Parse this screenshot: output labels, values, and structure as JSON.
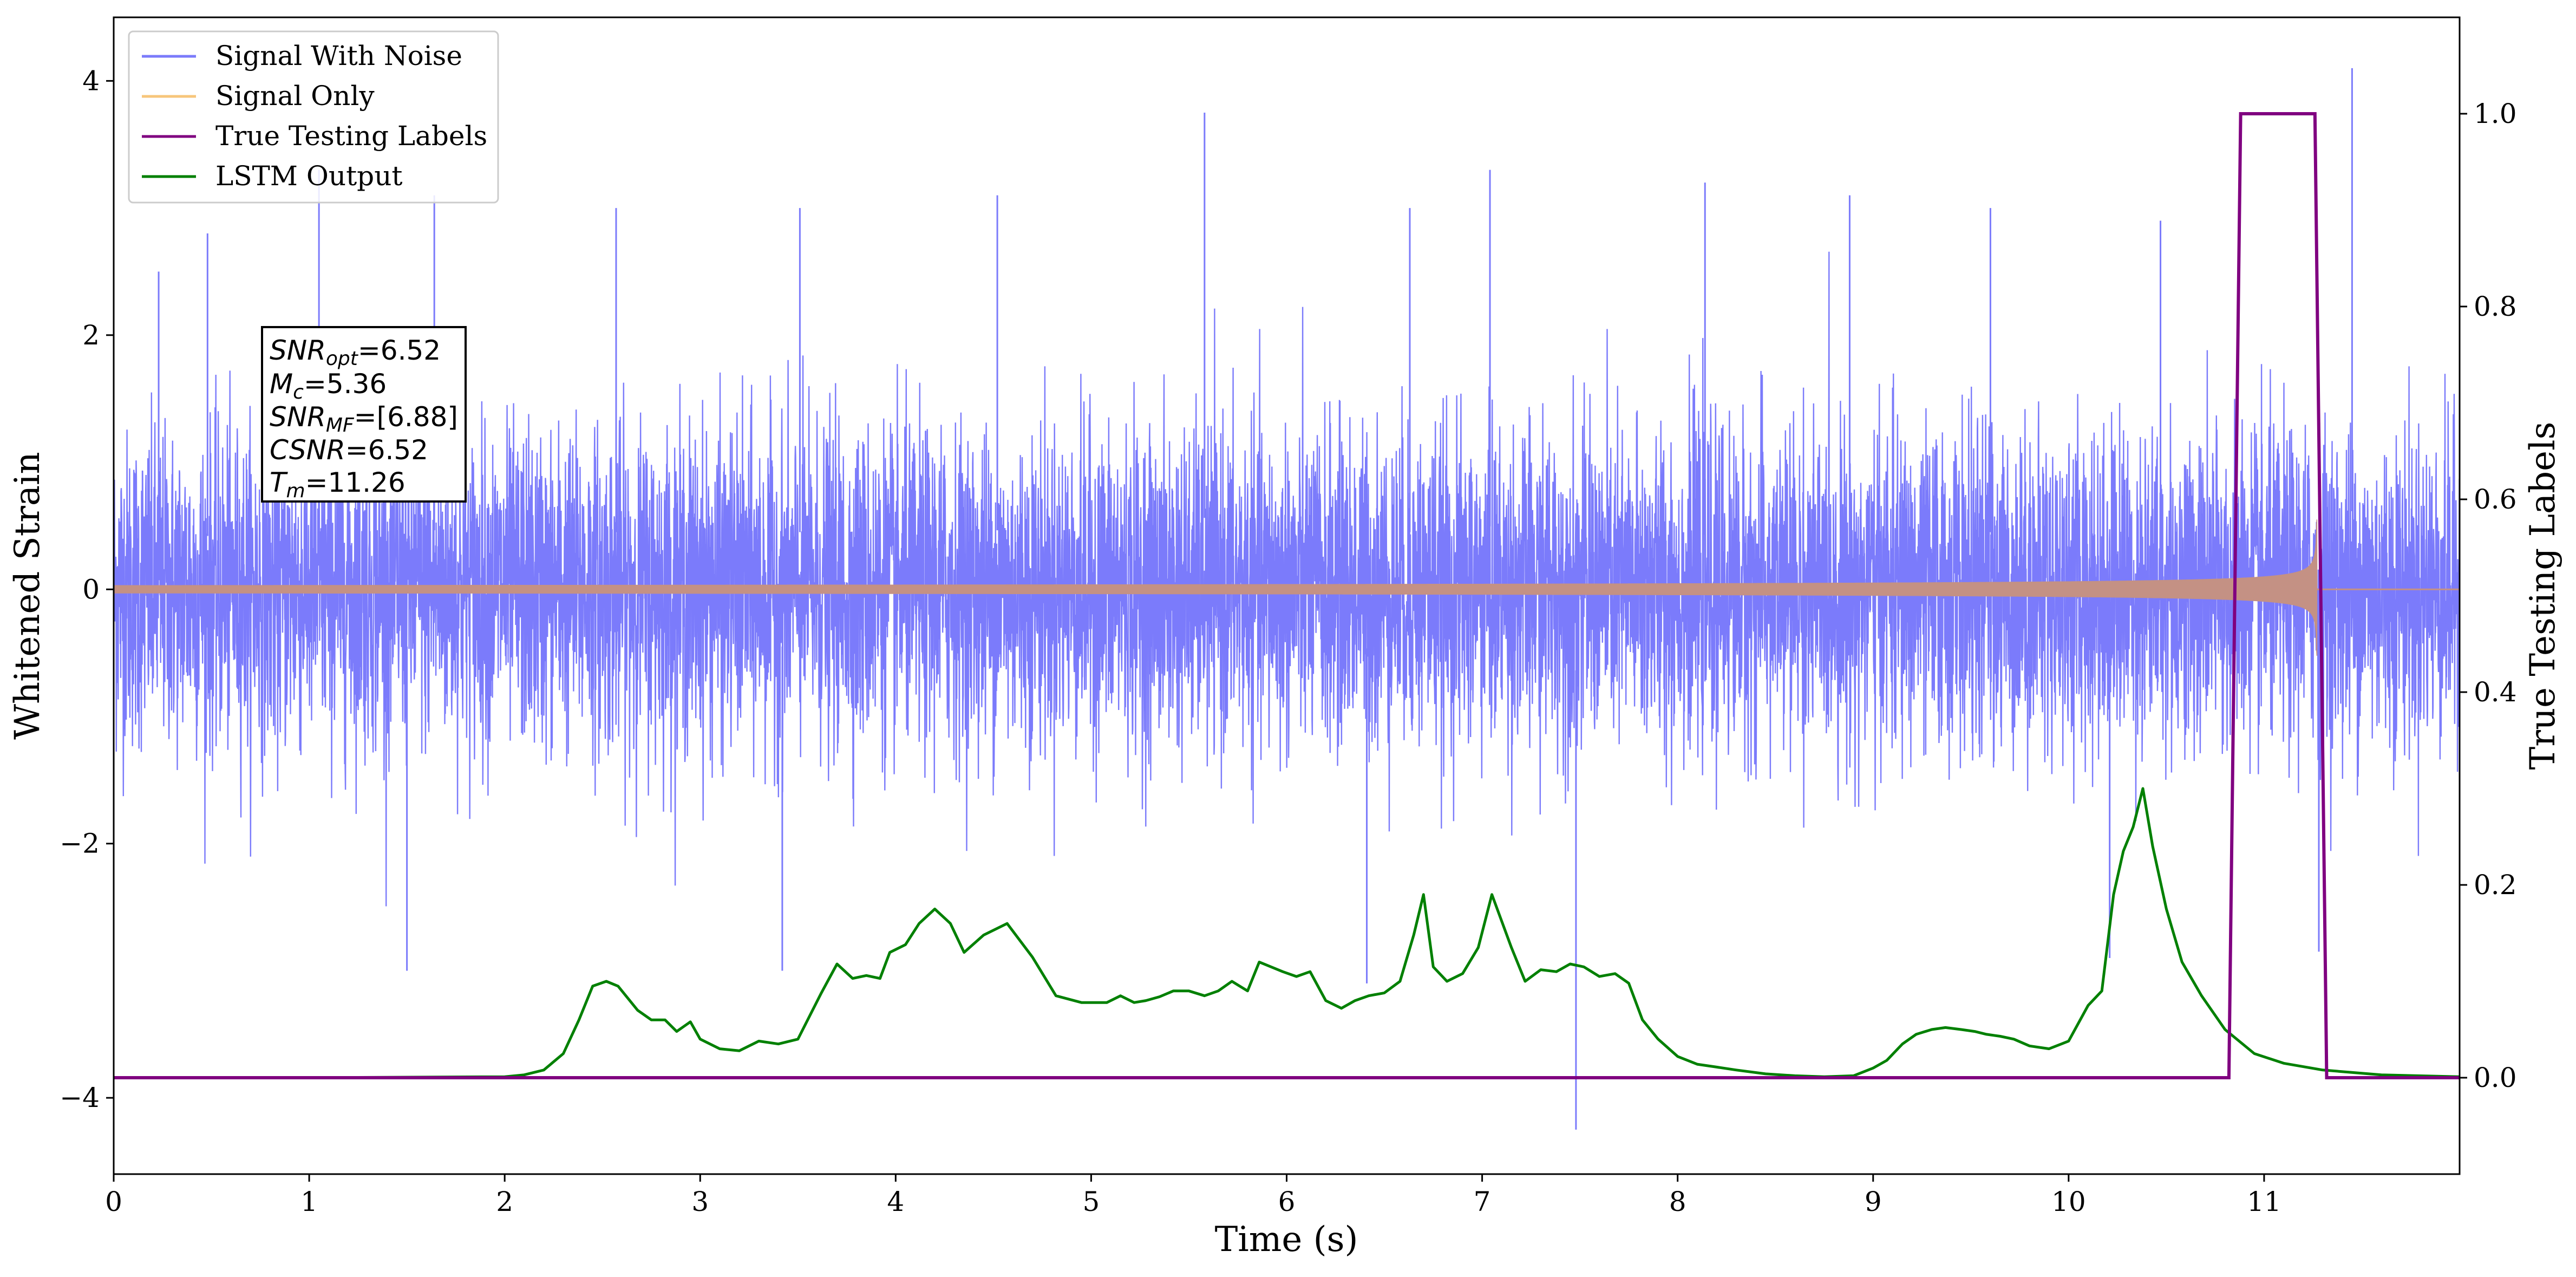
{
  "chart_data": {
    "type": "line",
    "xlabel": "Time (s)",
    "ylabel_left": "Whitened Strain",
    "ylabel_right": "True Testing Labels",
    "xlim": [
      0,
      12
    ],
    "ylim_left": [
      -4.6,
      4.5
    ],
    "ylim_right": [
      -0.1,
      1.1
    ],
    "x_ticks": [
      0,
      1,
      2,
      3,
      4,
      5,
      6,
      7,
      8,
      9,
      10,
      11
    ],
    "y_ticks_left": [
      {
        "value": 4,
        "label": "4"
      },
      {
        "value": 2,
        "label": "2"
      },
      {
        "value": 0,
        "label": "0"
      },
      {
        "value": -2,
        "label": "−2"
      },
      {
        "value": -4,
        "label": "−4"
      }
    ],
    "y_ticks_right": [
      {
        "value": 0.0,
        "label": "0.0"
      },
      {
        "value": 0.2,
        "label": "0.2"
      },
      {
        "value": 0.4,
        "label": "0.4"
      },
      {
        "value": 0.6,
        "label": "0.6"
      },
      {
        "value": 0.8,
        "label": "0.8"
      },
      {
        "value": 1.0,
        "label": "1.0"
      }
    ],
    "grid": false,
    "legend_position": "top-left",
    "legend": [
      "Signal With Noise",
      "Signal Only",
      "True Testing Labels",
      "LSTM Output"
    ],
    "colors": {
      "noise": "#7b7bfb",
      "signal": "#f7c67b",
      "labels": "#800080",
      "lstm": "#008000",
      "overlap": "#c49184"
    },
    "annotation": [
      {
        "symbol": "SNR",
        "sub": "opt",
        "value": "=6.52"
      },
      {
        "symbol": "M",
        "sub": "c",
        "value": "=5.36"
      },
      {
        "symbol": "SNR",
        "sub": "MF",
        "value": "=[6.88]"
      },
      {
        "symbol": "CSNR",
        "sub": "",
        "value": "=6.52"
      },
      {
        "symbol": "T",
        "sub": "m",
        "value": "=11.26"
      }
    ],
    "series": [
      {
        "name": "Signal With Noise",
        "axis": "left",
        "description_kind": "noise",
        "std": 0.62,
        "spikes": [
          [
            0.23,
            2.5
          ],
          [
            0.48,
            2.8
          ],
          [
            1.05,
            3.3
          ],
          [
            1.64,
            3.1
          ],
          [
            2.57,
            3.0
          ],
          [
            3.51,
            3.0
          ],
          [
            4.52,
            3.1
          ],
          [
            5.58,
            3.75
          ],
          [
            6.63,
            3.0
          ],
          [
            7.04,
            3.3
          ],
          [
            7.48,
            -4.25
          ],
          [
            8.14,
            3.2
          ],
          [
            8.88,
            3.1
          ],
          [
            9.6,
            3.0
          ],
          [
            10.47,
            2.9
          ],
          [
            11.45,
            4.1
          ],
          [
            1.5,
            -3.0
          ],
          [
            3.42,
            -3.0
          ],
          [
            6.41,
            -3.1
          ],
          [
            10.21,
            -2.9
          ],
          [
            11.28,
            -2.85
          ]
        ]
      },
      {
        "name": "Signal Only",
        "axis": "left",
        "description_kind": "chirp",
        "merge_time": 11.27,
        "start_amplitude": 0.03,
        "peak_amplitude": 0.55
      },
      {
        "name": "True Testing Labels",
        "axis": "right",
        "x": [
          0,
          10.82,
          10.88,
          11.26,
          11.32,
          12.0
        ],
        "y": [
          0,
          0,
          1,
          1,
          0,
          0
        ]
      },
      {
        "name": "LSTM Output",
        "axis": "right",
        "x": [
          0,
          1.0,
          2.0,
          2.1,
          2.2,
          2.3,
          2.38,
          2.45,
          2.52,
          2.58,
          2.62,
          2.68,
          2.75,
          2.82,
          2.88,
          2.95,
          3.0,
          3.1,
          3.2,
          3.3,
          3.4,
          3.5,
          3.55,
          3.62,
          3.7,
          3.78,
          3.85,
          3.92,
          3.97,
          4.05,
          4.12,
          4.2,
          4.28,
          4.35,
          4.45,
          4.57,
          4.7,
          4.82,
          4.95,
          5.08,
          5.15,
          5.22,
          5.28,
          5.35,
          5.42,
          5.5,
          5.58,
          5.65,
          5.72,
          5.8,
          5.86,
          5.92,
          5.98,
          6.05,
          6.12,
          6.2,
          6.28,
          6.35,
          6.42,
          6.5,
          6.58,
          6.65,
          6.7,
          6.75,
          6.82,
          6.9,
          6.98,
          7.05,
          7.15,
          7.22,
          7.3,
          7.38,
          7.45,
          7.52,
          7.6,
          7.68,
          7.75,
          7.82,
          7.9,
          8.0,
          8.1,
          8.2,
          8.3,
          8.45,
          8.6,
          8.75,
          8.9,
          9.0,
          9.07,
          9.15,
          9.22,
          9.3,
          9.37,
          9.45,
          9.52,
          9.58,
          9.65,
          9.72,
          9.8,
          9.9,
          10.0,
          10.1,
          10.17,
          10.23,
          10.28,
          10.33,
          10.38,
          10.43,
          10.5,
          10.58,
          10.68,
          10.8,
          10.95,
          11.1,
          11.3,
          11.6,
          12.0
        ],
        "y": [
          0,
          0,
          0.001,
          0.003,
          0.008,
          0.025,
          0.06,
          0.095,
          0.1,
          0.095,
          0.085,
          0.07,
          0.06,
          0.06,
          0.048,
          0.058,
          0.04,
          0.03,
          0.028,
          0.038,
          0.035,
          0.04,
          0.06,
          0.088,
          0.118,
          0.103,
          0.106,
          0.103,
          0.13,
          0.138,
          0.16,
          0.175,
          0.16,
          0.13,
          0.148,
          0.16,
          0.125,
          0.085,
          0.078,
          0.078,
          0.085,
          0.078,
          0.08,
          0.084,
          0.09,
          0.09,
          0.085,
          0.09,
          0.1,
          0.09,
          0.12,
          0.115,
          0.11,
          0.105,
          0.11,
          0.08,
          0.072,
          0.08,
          0.085,
          0.088,
          0.1,
          0.148,
          0.19,
          0.115,
          0.1,
          0.108,
          0.135,
          0.19,
          0.135,
          0.1,
          0.112,
          0.11,
          0.118,
          0.115,
          0.105,
          0.108,
          0.098,
          0.06,
          0.04,
          0.022,
          0.014,
          0.011,
          0.008,
          0.004,
          0.002,
          0.001,
          0.002,
          0.01,
          0.018,
          0.035,
          0.045,
          0.05,
          0.052,
          0.05,
          0.048,
          0.045,
          0.043,
          0.04,
          0.033,
          0.03,
          0.038,
          0.075,
          0.09,
          0.19,
          0.235,
          0.26,
          0.3,
          0.24,
          0.175,
          0.12,
          0.085,
          0.05,
          0.025,
          0.015,
          0.008,
          0.003,
          0.001
        ]
      }
    ]
  }
}
